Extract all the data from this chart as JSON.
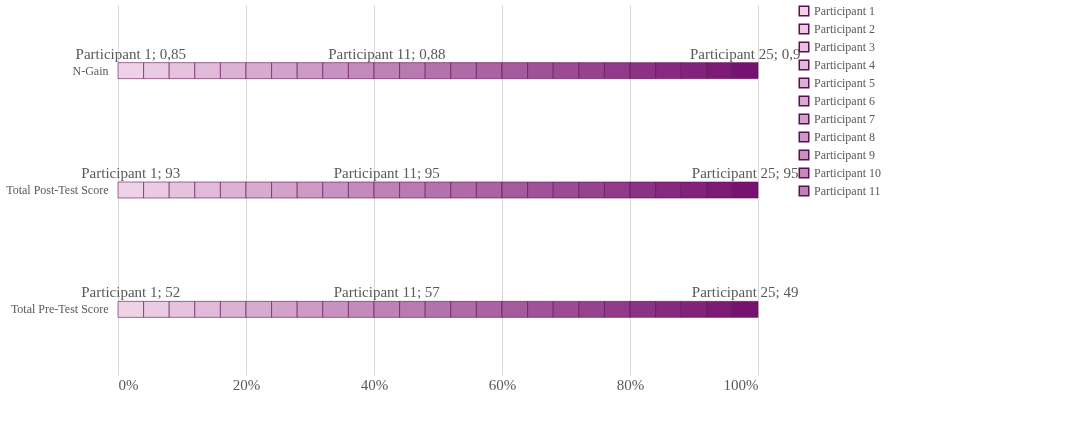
{
  "chart_data": {
    "type": "bar",
    "orientation": "horizontal",
    "stacked": true,
    "categories": [
      "N-Gain",
      "Total Post-Test Score",
      "Total Pre-Test Score"
    ],
    "xlim": [
      0,
      100
    ],
    "xticks": [
      {
        "value": 0,
        "label": "0%"
      },
      {
        "value": 20,
        "label": "20%"
      },
      {
        "value": 40,
        "label": "40%"
      },
      {
        "value": 60,
        "label": "60%"
      },
      {
        "value": 80,
        "label": "80%"
      },
      {
        "value": 100,
        "label": "100%"
      }
    ],
    "grid": "x",
    "legend": "right",
    "series": [
      {
        "name": "Participant 1",
        "color": "#f0d2e8",
        "values": [
          4,
          4,
          4
        ],
        "value_labels": [
          "Participant 1; 0,85",
          "Participant 1; 93",
          "Participant 1; 52"
        ]
      },
      {
        "name": "Participant 2",
        "color": "#ebcae3",
        "values": [
          4,
          4,
          4
        ]
      },
      {
        "name": "Participant 3",
        "color": "#e6c2de",
        "values": [
          4,
          4,
          4
        ]
      },
      {
        "name": "Participant 4",
        "color": "#e1bad9",
        "values": [
          4,
          4,
          4
        ]
      },
      {
        "name": "Participant 5",
        "color": "#dcb2d4",
        "values": [
          4,
          4,
          4
        ]
      },
      {
        "name": "Participant 6",
        "color": "#d7aacf",
        "values": [
          4,
          4,
          4
        ]
      },
      {
        "name": "Participant 7",
        "color": "#d2a2ca",
        "values": [
          4,
          4,
          4
        ]
      },
      {
        "name": "Participant 8",
        "color": "#cd9ac5",
        "values": [
          4,
          4,
          4
        ]
      },
      {
        "name": "Participant 9",
        "color": "#c892c0",
        "values": [
          4,
          4,
          4
        ]
      },
      {
        "name": "Participant 10",
        "color": "#c38abb",
        "values": [
          4,
          4,
          4
        ]
      },
      {
        "name": "Participant 11",
        "color": "#be82b6",
        "values": [
          4,
          4,
          4
        ],
        "value_labels": [
          "Participant 11; 0,88",
          "Participant 11; 95",
          "Participant 11; 57"
        ]
      },
      {
        "color": "#b97ab1",
        "values": [
          4,
          4,
          4
        ]
      },
      {
        "color": "#b472ac",
        "values": [
          4,
          4,
          4
        ]
      },
      {
        "color": "#af6aa7",
        "values": [
          4,
          4,
          4
        ]
      },
      {
        "color": "#aa62a2",
        "values": [
          4,
          4,
          4
        ]
      },
      {
        "color": "#a55a9d",
        "values": [
          4,
          4,
          4
        ]
      },
      {
        "color": "#a05298",
        "values": [
          4,
          4,
          4
        ]
      },
      {
        "color": "#9b4a93",
        "values": [
          4,
          4,
          4
        ]
      },
      {
        "color": "#96428e",
        "values": [
          4,
          4,
          4
        ]
      },
      {
        "color": "#913a89",
        "values": [
          4,
          4,
          4
        ]
      },
      {
        "color": "#8c3284",
        "values": [
          4,
          4,
          4
        ]
      },
      {
        "color": "#872a7f",
        "values": [
          4,
          4,
          4
        ]
      },
      {
        "color": "#82227a",
        "values": [
          4,
          4,
          4
        ]
      },
      {
        "color": "#7d1a75",
        "values": [
          4,
          4,
          4
        ]
      },
      {
        "color": "#781270",
        "values": [
          4,
          4,
          4
        ],
        "value_labels": [
          "Participant 25; 0,9",
          "Participant 25; 95",
          "Participant 25; 49"
        ]
      }
    ]
  }
}
